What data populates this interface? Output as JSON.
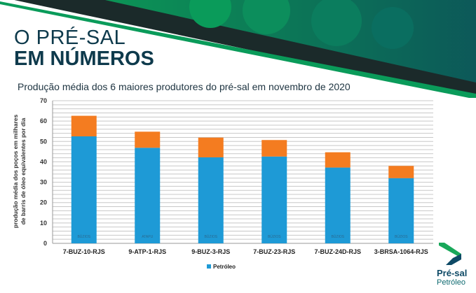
{
  "header": {
    "title_line1": "O PRÉ-SAL",
    "title_line2": "EM NÚMEROS",
    "subtitle": "Produção média dos 6 maiores produtores do pré-sal em novembro de 2020"
  },
  "logo": {
    "line1": "Pré-sal",
    "line2": "Petróleo"
  },
  "colors": {
    "blue": "#1e9ad6",
    "orange": "#f47c20",
    "dark": "#0e3a4c",
    "green": "#0a9b5a"
  },
  "chart_data": {
    "type": "bar",
    "stacked": true,
    "title": "Produção média dos 6 maiores produtores do pré-sal em novembro de 2020",
    "ylabel": "produção média dos poços em milhares de barris de óleo equivalentes por dia",
    "ylabel_lines": [
      "produção média dos poços em milhares",
      "de barris de óleo equivalentes por dia"
    ],
    "xlabel": "",
    "ylim": [
      0,
      70
    ],
    "yticks": [
      "0",
      "10",
      "20",
      "30",
      "40",
      "50",
      "60",
      "70"
    ],
    "grid": true,
    "legend_placement": "bottom-left",
    "categories": [
      "7-BUZ-10-RJS",
      "9-ATP-1-RJS",
      "9-BUZ-3-RJS",
      "7-BUZ-23-RJS",
      "7-BUZ-24D-RJS",
      "3-BRSA-1064-RJS"
    ],
    "field_labels": [
      "BÚZIOS",
      "ATAPU",
      "BÚZIOS",
      "BÚZIOS",
      "BÚZIOS",
      "BÚZIOS"
    ],
    "series": [
      {
        "name": "Petróleo",
        "color": "#1e9ad6",
        "values": [
          52.5,
          46.9,
          42.2,
          42.6,
          37.2,
          32.0
        ]
      },
      {
        "color": "#f47c20",
        "values": [
          10.1,
          7.9,
          9.7,
          8.1,
          7.5,
          6.0
        ]
      }
    ]
  }
}
